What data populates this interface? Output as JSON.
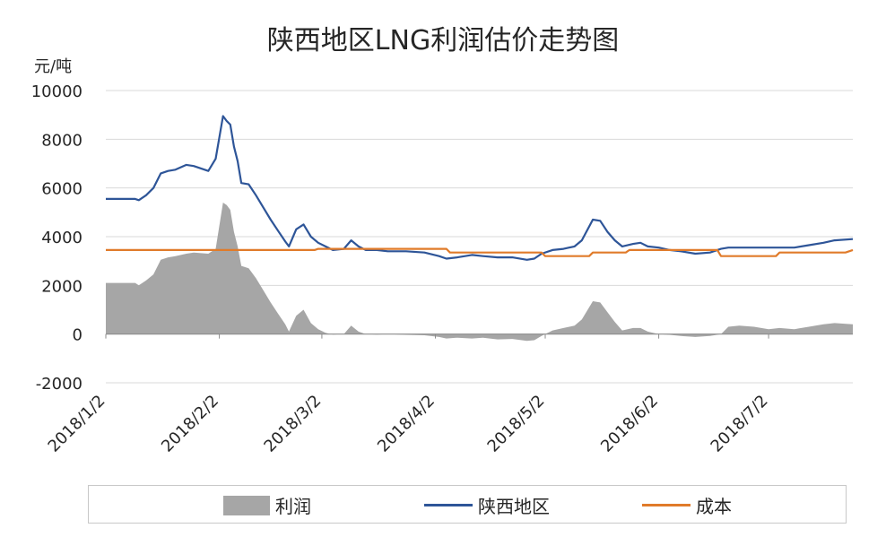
{
  "chart_data": {
    "type": "line",
    "title": "陕西地区LNG利润估价走势图",
    "ylabel": "元/吨",
    "ylim": [
      -2000,
      10000
    ],
    "yticks": [
      10000,
      8000,
      6000,
      4000,
      2000,
      0,
      -2000
    ],
    "ytick_labels": [
      "10000",
      "8000",
      "6000",
      "4000",
      "2000",
      "0",
      "-2000"
    ],
    "xlim": [
      "2018-01-02",
      "2018-07-25"
    ],
    "xtick_values": [
      "2018-01-02",
      "2018-02-02",
      "2018-03-02",
      "2018-04-02",
      "2018-05-02",
      "2018-06-02",
      "2018-07-02"
    ],
    "xtick_labels": [
      "2018/1/2",
      "2018/2/2",
      "2018/3/2",
      "2018/4/2",
      "2018/5/2",
      "2018/6/2",
      "2018/7/2"
    ],
    "grid": true,
    "legend_position": "bottom",
    "series": [
      {
        "name": "利润",
        "kind": "area",
        "color": "#a6a6a6",
        "points": [
          [
            "2018-01-02",
            2100
          ],
          [
            "2018-01-10",
            2100
          ],
          [
            "2018-01-11",
            2000
          ],
          [
            "2018-01-13",
            2200
          ],
          [
            "2018-01-15",
            2450
          ],
          [
            "2018-01-17",
            3050
          ],
          [
            "2018-01-19",
            3150
          ],
          [
            "2018-01-21",
            3200
          ],
          [
            "2018-01-24",
            3300
          ],
          [
            "2018-01-26",
            3350
          ],
          [
            "2018-01-30",
            3300
          ],
          [
            "2018-02-01",
            3500
          ],
          [
            "2018-02-03",
            5400
          ],
          [
            "2018-02-04",
            5300
          ],
          [
            "2018-02-05",
            5100
          ],
          [
            "2018-02-06",
            4200
          ],
          [
            "2018-02-07",
            3600
          ],
          [
            "2018-02-08",
            2800
          ],
          [
            "2018-02-10",
            2700
          ],
          [
            "2018-02-12",
            2300
          ],
          [
            "2018-02-14",
            1800
          ],
          [
            "2018-02-16",
            1300
          ],
          [
            "2018-02-18",
            850
          ],
          [
            "2018-02-20",
            400
          ],
          [
            "2018-02-21",
            100
          ],
          [
            "2018-02-23",
            750
          ],
          [
            "2018-02-25",
            1000
          ],
          [
            "2018-02-27",
            450
          ],
          [
            "2018-03-01",
            200
          ],
          [
            "2018-03-03",
            50
          ],
          [
            "2018-03-05",
            -20
          ],
          [
            "2018-03-08",
            0
          ],
          [
            "2018-03-10",
            350
          ],
          [
            "2018-03-12",
            100
          ],
          [
            "2018-03-14",
            0
          ],
          [
            "2018-03-17",
            -20
          ],
          [
            "2018-03-20",
            0
          ],
          [
            "2018-03-25",
            -30
          ],
          [
            "2018-03-30",
            -50
          ],
          [
            "2018-04-03",
            -120
          ],
          [
            "2018-04-05",
            -180
          ],
          [
            "2018-04-08",
            -150
          ],
          [
            "2018-04-12",
            -180
          ],
          [
            "2018-04-15",
            -150
          ],
          [
            "2018-04-19",
            -220
          ],
          [
            "2018-04-23",
            -200
          ],
          [
            "2018-04-27",
            -280
          ],
          [
            "2018-04-29",
            -250
          ],
          [
            "2018-05-01",
            -80
          ],
          [
            "2018-05-04",
            150
          ],
          [
            "2018-05-07",
            250
          ],
          [
            "2018-05-10",
            350
          ],
          [
            "2018-05-12",
            600
          ],
          [
            "2018-05-15",
            1350
          ],
          [
            "2018-05-17",
            1300
          ],
          [
            "2018-05-19",
            900
          ],
          [
            "2018-05-21",
            500
          ],
          [
            "2018-05-23",
            150
          ],
          [
            "2018-05-26",
            250
          ],
          [
            "2018-05-28",
            250
          ],
          [
            "2018-05-30",
            100
          ],
          [
            "2018-06-02",
            0
          ],
          [
            "2018-06-05",
            -30
          ],
          [
            "2018-06-08",
            -80
          ],
          [
            "2018-06-12",
            -120
          ],
          [
            "2018-06-16",
            -80
          ],
          [
            "2018-06-19",
            0
          ],
          [
            "2018-06-21",
            300
          ],
          [
            "2018-06-24",
            350
          ],
          [
            "2018-06-28",
            300
          ],
          [
            "2018-07-02",
            200
          ],
          [
            "2018-07-05",
            250
          ],
          [
            "2018-07-09",
            200
          ],
          [
            "2018-07-13",
            300
          ],
          [
            "2018-07-17",
            400
          ],
          [
            "2018-07-20",
            450
          ],
          [
            "2018-07-25",
            400
          ]
        ]
      },
      {
        "name": "陕西地区",
        "kind": "line",
        "color": "#2e5598",
        "points": [
          [
            "2018-01-02",
            5550
          ],
          [
            "2018-01-10",
            5550
          ],
          [
            "2018-01-11",
            5500
          ],
          [
            "2018-01-13",
            5700
          ],
          [
            "2018-01-15",
            6000
          ],
          [
            "2018-01-17",
            6600
          ],
          [
            "2018-01-19",
            6700
          ],
          [
            "2018-01-21",
            6750
          ],
          [
            "2018-01-24",
            6950
          ],
          [
            "2018-01-26",
            6900
          ],
          [
            "2018-01-30",
            6700
          ],
          [
            "2018-02-01",
            7200
          ],
          [
            "2018-02-03",
            8950
          ],
          [
            "2018-02-04",
            8750
          ],
          [
            "2018-02-05",
            8600
          ],
          [
            "2018-02-06",
            7700
          ],
          [
            "2018-02-07",
            7100
          ],
          [
            "2018-02-08",
            6200
          ],
          [
            "2018-02-10",
            6150
          ],
          [
            "2018-02-12",
            5700
          ],
          [
            "2018-02-14",
            5200
          ],
          [
            "2018-02-16",
            4700
          ],
          [
            "2018-02-18",
            4250
          ],
          [
            "2018-02-20",
            3800
          ],
          [
            "2018-02-21",
            3600
          ],
          [
            "2018-02-23",
            4300
          ],
          [
            "2018-02-25",
            4500
          ],
          [
            "2018-02-27",
            4000
          ],
          [
            "2018-03-01",
            3750
          ],
          [
            "2018-03-03",
            3600
          ],
          [
            "2018-03-05",
            3450
          ],
          [
            "2018-03-08",
            3500
          ],
          [
            "2018-03-10",
            3850
          ],
          [
            "2018-03-12",
            3600
          ],
          [
            "2018-03-14",
            3450
          ],
          [
            "2018-03-17",
            3450
          ],
          [
            "2018-03-20",
            3400
          ],
          [
            "2018-03-25",
            3400
          ],
          [
            "2018-03-30",
            3350
          ],
          [
            "2018-04-03",
            3200
          ],
          [
            "2018-04-05",
            3100
          ],
          [
            "2018-04-08",
            3150
          ],
          [
            "2018-04-12",
            3250
          ],
          [
            "2018-04-15",
            3200
          ],
          [
            "2018-04-19",
            3150
          ],
          [
            "2018-04-23",
            3150
          ],
          [
            "2018-04-27",
            3050
          ],
          [
            "2018-04-29",
            3100
          ],
          [
            "2018-05-01",
            3300
          ],
          [
            "2018-05-04",
            3450
          ],
          [
            "2018-05-07",
            3500
          ],
          [
            "2018-05-10",
            3600
          ],
          [
            "2018-05-12",
            3850
          ],
          [
            "2018-05-15",
            4700
          ],
          [
            "2018-05-17",
            4650
          ],
          [
            "2018-05-19",
            4200
          ],
          [
            "2018-05-21",
            3850
          ],
          [
            "2018-05-23",
            3600
          ],
          [
            "2018-05-26",
            3700
          ],
          [
            "2018-05-28",
            3750
          ],
          [
            "2018-05-30",
            3600
          ],
          [
            "2018-06-02",
            3550
          ],
          [
            "2018-06-05",
            3450
          ],
          [
            "2018-06-08",
            3400
          ],
          [
            "2018-06-12",
            3300
          ],
          [
            "2018-06-16",
            3350
          ],
          [
            "2018-06-19",
            3500
          ],
          [
            "2018-06-21",
            3550
          ],
          [
            "2018-06-24",
            3550
          ],
          [
            "2018-06-28",
            3550
          ],
          [
            "2018-07-02",
            3550
          ],
          [
            "2018-07-05",
            3550
          ],
          [
            "2018-07-09",
            3550
          ],
          [
            "2018-07-13",
            3650
          ],
          [
            "2018-07-17",
            3750
          ],
          [
            "2018-07-20",
            3850
          ],
          [
            "2018-07-25",
            3900
          ]
        ]
      },
      {
        "name": "成本",
        "kind": "line",
        "color": "#e07b2a",
        "points": [
          [
            "2018-01-02",
            3450
          ],
          [
            "2018-02-28",
            3450
          ],
          [
            "2018-03-01",
            3500
          ],
          [
            "2018-04-05",
            3500
          ],
          [
            "2018-04-06",
            3350
          ],
          [
            "2018-05-01",
            3350
          ],
          [
            "2018-05-02",
            3200
          ],
          [
            "2018-05-14",
            3200
          ],
          [
            "2018-05-15",
            3350
          ],
          [
            "2018-05-24",
            3350
          ],
          [
            "2018-05-25",
            3450
          ],
          [
            "2018-06-18",
            3450
          ],
          [
            "2018-06-19",
            3200
          ],
          [
            "2018-07-04",
            3200
          ],
          [
            "2018-07-05",
            3350
          ],
          [
            "2018-07-23",
            3350
          ],
          [
            "2018-07-25",
            3450
          ]
        ]
      }
    ]
  }
}
